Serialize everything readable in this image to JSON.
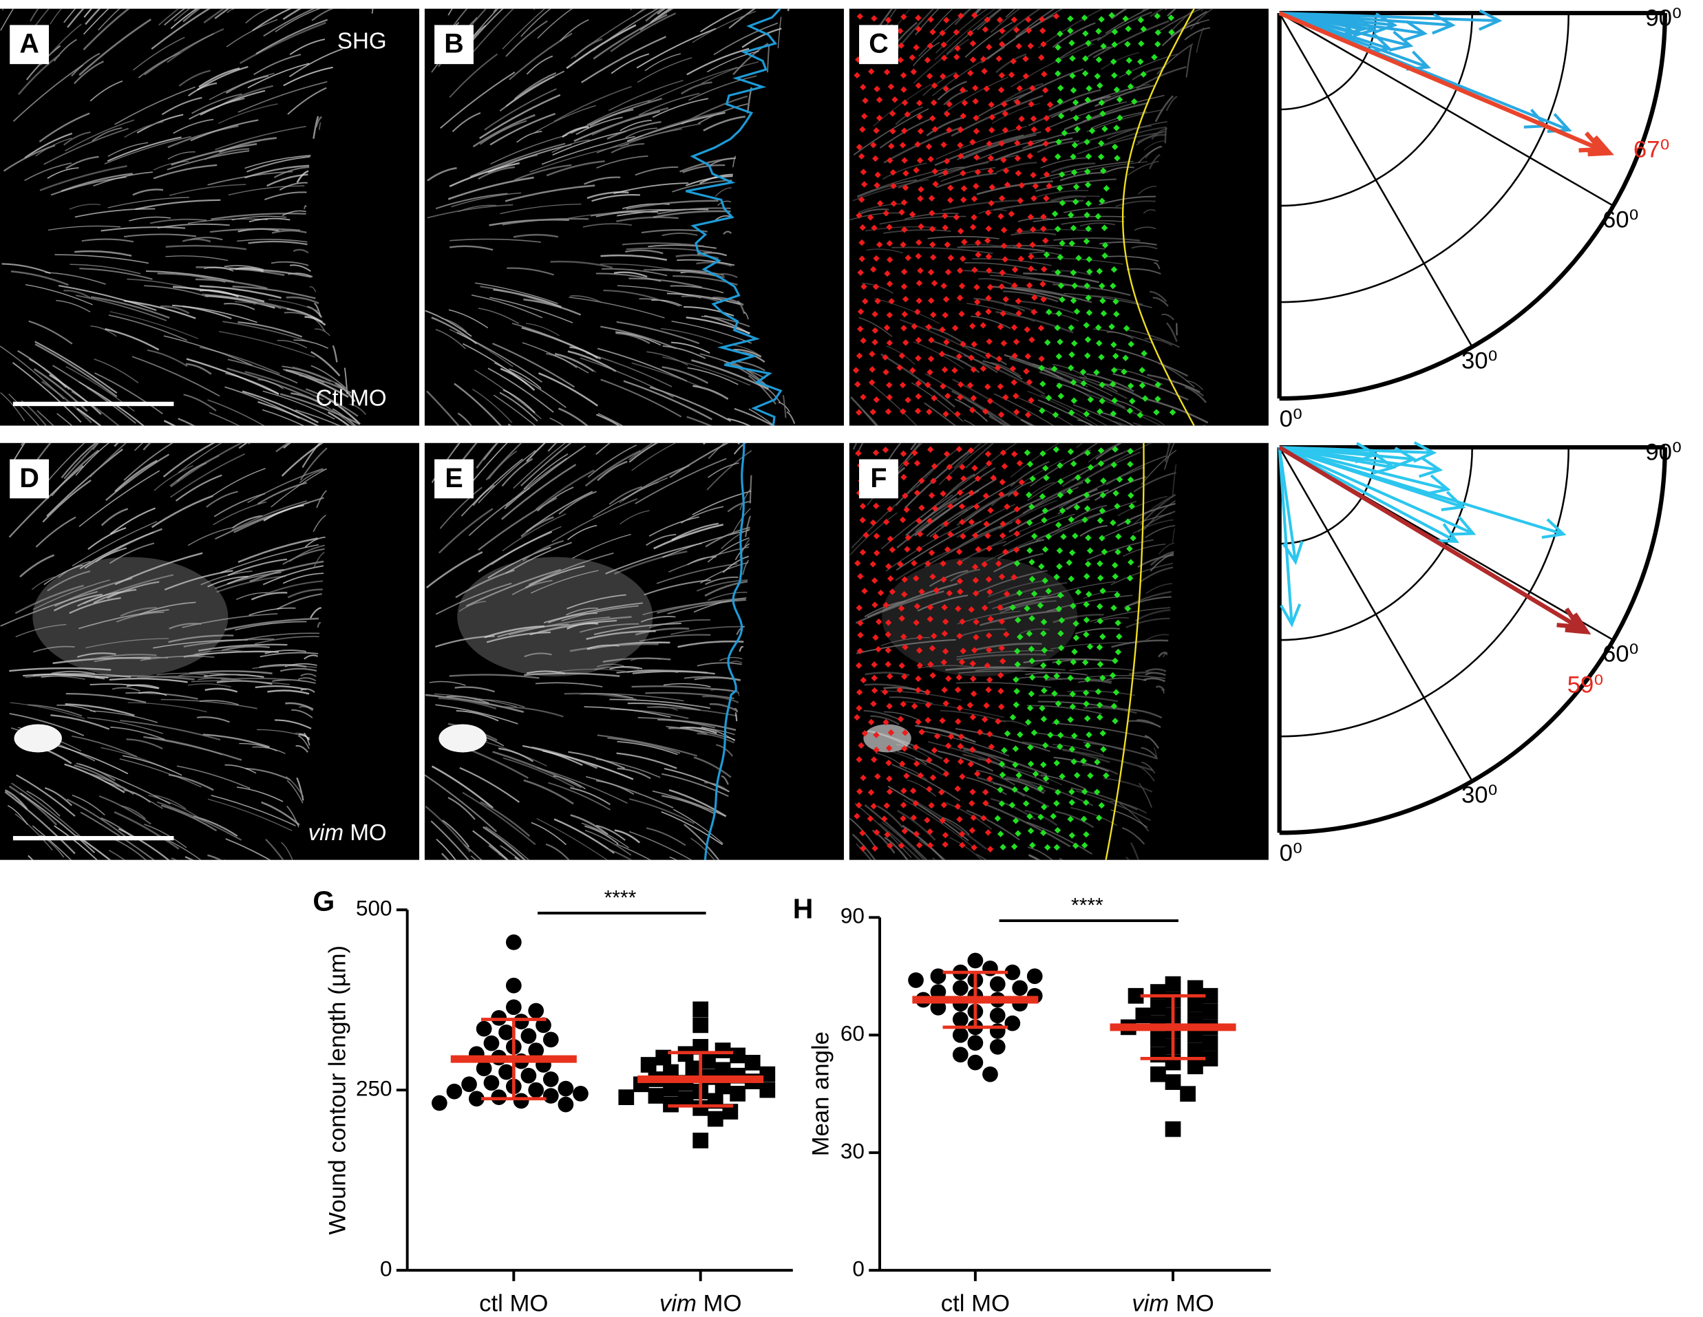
{
  "image_panels": [
    {
      "label": "A",
      "annotations": [
        {
          "text": "SHG",
          "italic_first_word": false
        },
        {
          "text": "Ctl MO",
          "italic_first_word": false
        }
      ],
      "scale_bar": true
    },
    {
      "label": "B",
      "overlay": "jagged-contour"
    },
    {
      "label": "C",
      "overlay": "vectors"
    },
    {
      "label": "D",
      "annotations": [
        {
          "text": "vim MO",
          "italic_first_word": true
        }
      ],
      "scale_bar": true
    },
    {
      "label": "E",
      "overlay": "smooth-contour"
    },
    {
      "label": "F",
      "overlay": "vectors"
    }
  ],
  "chart_data": [
    {
      "type": "polar",
      "rlim": [
        0,
        1
      ],
      "theta_ticks": [
        {
          "value": 0,
          "label": "0⁰"
        },
        {
          "value": 30,
          "label": "30⁰"
        },
        {
          "value": 60,
          "label": "60⁰"
        },
        {
          "value": 90,
          "label": "90⁰"
        }
      ],
      "arrows": {
        "color": "#29a9e1",
        "angles": [
          88,
          86,
          84,
          80,
          76,
          72,
          70,
          68,
          67,
          75,
          82,
          79
        ],
        "lengths": [
          0.57,
          0.45,
          0.3,
          0.25,
          0.35,
          0.3,
          0.41,
          0.81,
          0.75,
          0.2,
          0.38,
          0.22
        ]
      },
      "mean": {
        "value": 67,
        "label": "67⁰",
        "length": 0.93,
        "color": "#e8452c",
        "label_color": "#e8281e"
      }
    },
    {
      "type": "polar",
      "rlim": [
        0,
        1
      ],
      "theta_ticks": [
        {
          "value": 0,
          "label": "0⁰"
        },
        {
          "value": 30,
          "label": "30⁰"
        },
        {
          "value": 60,
          "label": "60⁰"
        },
        {
          "value": 90,
          "label": "90⁰"
        }
      ],
      "arrows": {
        "color": "#2cc6ee",
        "angles": [
          88,
          85,
          82,
          80,
          76,
          72,
          62,
          73,
          66,
          4,
          8,
          86
        ],
        "lengths": [
          0.4,
          0.35,
          0.42,
          0.3,
          0.45,
          0.5,
          0.52,
          0.77,
          0.55,
          0.46,
          0.3,
          0.25
        ]
      },
      "mean": {
        "value": 59,
        "label": "59⁰",
        "length": 0.93,
        "color": "#b22a2a",
        "label_color": "#e8281e"
      }
    },
    {
      "type": "dotplot",
      "label": "G",
      "ylabel": "Wound contour length (µm)",
      "ylim": [
        0,
        500
      ],
      "yticks": [
        0,
        250,
        500
      ],
      "categories": [
        "ctl MO",
        "vim MO"
      ],
      "category_italic_first_word": [
        false,
        true
      ],
      "significance": "****",
      "stat_color": "#e8321e",
      "groups": [
        {
          "marker": "circle",
          "values": [
            455,
            395,
            365,
            360,
            350,
            345,
            340,
            335,
            330,
            325,
            320,
            315,
            310,
            305,
            300,
            295,
            290,
            285,
            280,
            275,
            270,
            265,
            260,
            258,
            255,
            252,
            250,
            248,
            245,
            242,
            240,
            238,
            235,
            232,
            230
          ],
          "mean": 293,
          "sd": 55
        },
        {
          "marker": "square",
          "values": [
            362,
            340,
            310,
            305,
            300,
            298,
            295,
            290,
            288,
            285,
            280,
            278,
            275,
            272,
            270,
            268,
            265,
            262,
            260,
            258,
            255,
            252,
            250,
            248,
            245,
            242,
            240,
            238,
            235,
            230,
            225,
            220,
            210,
            180
          ],
          "mean": 265,
          "sd": 37
        }
      ]
    },
    {
      "type": "dotplot",
      "label": "H",
      "ylabel": "Mean angle",
      "ylim": [
        0,
        90
      ],
      "yticks": [
        0,
        30,
        60,
        90
      ],
      "categories": [
        "ctl MO",
        "vim MO"
      ],
      "category_italic_first_word": [
        false,
        true
      ],
      "significance": "****",
      "stat_color": "#e8321e",
      "groups": [
        {
          "marker": "circle",
          "values": [
            79,
            77,
            76,
            76,
            75,
            75,
            74,
            74,
            73,
            72,
            72,
            71,
            70,
            70,
            69,
            69,
            68,
            68,
            67,
            66,
            65,
            64,
            63,
            62,
            61,
            60,
            58,
            57,
            55,
            53,
            50
          ],
          "mean": 69,
          "sd": 7
        },
        {
          "marker": "square",
          "values": [
            73,
            72,
            71,
            70,
            70,
            69,
            68,
            67,
            66,
            65,
            65,
            64,
            63,
            62,
            62,
            61,
            60,
            59,
            58,
            57,
            56,
            55,
            54,
            53,
            52,
            50,
            48,
            45,
            36
          ],
          "mean": 62,
          "sd": 8
        }
      ]
    }
  ]
}
